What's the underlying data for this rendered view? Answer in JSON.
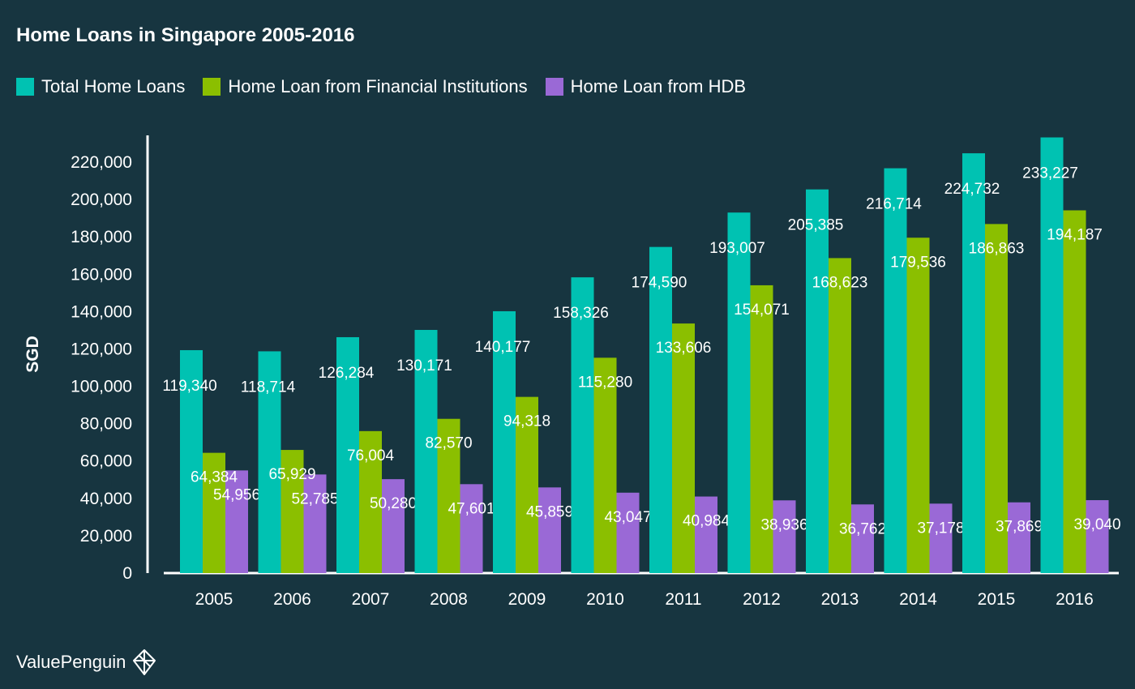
{
  "header": {
    "title": "Home Loans in Singapore 2005-2016"
  },
  "brand": {
    "name": "ValuePenguin"
  },
  "colors": {
    "background": "#173540",
    "total": "#00c2b2",
    "financial": "#8bbf00",
    "hdb": "#9a69d6"
  },
  "chart_data": {
    "type": "bar",
    "title": "Home Loans in Singapore 2005-2016",
    "xlabel": "",
    "ylabel": "SGD",
    "ylim": [
      0,
      230000
    ],
    "yticks": [
      "0",
      "20,000",
      "40,000",
      "60,000",
      "80,000",
      "100,000",
      "120,000",
      "140,000",
      "160,000",
      "180,000",
      "200,000",
      "220,000"
    ],
    "ytick_values": [
      0,
      20000,
      40000,
      60000,
      80000,
      100000,
      120000,
      140000,
      160000,
      180000,
      200000,
      220000
    ],
    "categories": [
      "2005",
      "2006",
      "2007",
      "2008",
      "2009",
      "2010",
      "2011",
      "2012",
      "2013",
      "2014",
      "2015",
      "2016"
    ],
    "legend_position": "top-left",
    "grid": false,
    "series": [
      {
        "name": "Total Home Loans",
        "color": "#00c2b2",
        "values": [
          119340,
          118714,
          126284,
          130171,
          140177,
          158326,
          174590,
          193007,
          205385,
          216714,
          224732,
          233227
        ],
        "labels": [
          "119,340",
          "118,714",
          "126,284",
          "130,171",
          "140,177",
          "158,326",
          "174,590",
          "193,007",
          "205,385",
          "216,714",
          "224,732",
          "233,227"
        ]
      },
      {
        "name": "Home Loan from Financial Institutions",
        "color": "#8bbf00",
        "values": [
          64384,
          65929,
          76004,
          82570,
          94318,
          115280,
          133606,
          154071,
          168623,
          179536,
          186863,
          194187
        ],
        "labels": [
          "64,384",
          "65,929",
          "76,004",
          "82,570",
          "94,318",
          "115,280",
          "133,606",
          "154,071",
          "168,623",
          "179,536",
          "186,863",
          "194,187"
        ]
      },
      {
        "name": "Home Loan from HDB",
        "color": "#9a69d6",
        "values": [
          54956,
          52785,
          50280,
          47601,
          45859,
          43047,
          40984,
          38936,
          36762,
          37178,
          37869,
          39040
        ],
        "labels": [
          "54,956",
          "52,785",
          "50,280",
          "47,601",
          "45,859",
          "43,047",
          "40,984",
          "38,936",
          "36,762",
          "37,178",
          "37,869",
          "39,040"
        ]
      }
    ]
  }
}
